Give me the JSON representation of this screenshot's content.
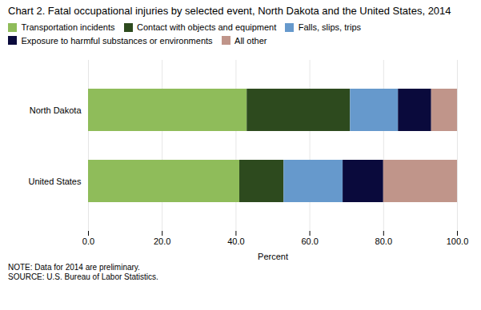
{
  "chart_data": {
    "type": "bar",
    "orientation": "horizontal",
    "stacked": true,
    "title": "Chart 2.  Fatal occupational injuries by selected event, North Dakota and the United States, 2014",
    "categories": [
      "North Dakota",
      "United States"
    ],
    "series": [
      {
        "name": "Transportation incidents",
        "color": "#8fbc5a",
        "values": [
          43.0,
          41.0
        ]
      },
      {
        "name": "Contact with objects and equipment",
        "color": "#2d4a1e",
        "values": [
          28.0,
          12.0
        ]
      },
      {
        "name": "Falls, slips, trips",
        "color": "#6699cc",
        "values": [
          13.0,
          16.0
        ]
      },
      {
        "name": "Exposure to harmful substances or environments",
        "color": "#0a0a3c",
        "values": [
          9.0,
          11.0
        ]
      },
      {
        "name": "All other",
        "color": "#c0958a",
        "values": [
          7.0,
          20.0
        ]
      }
    ],
    "xlabel": "Percent",
    "xlim": [
      0,
      100
    ],
    "xticks": [
      {
        "value": 0,
        "label": "0.0"
      },
      {
        "value": 20,
        "label": "20.0"
      },
      {
        "value": 40,
        "label": "40.0"
      },
      {
        "value": 60,
        "label": "60.0"
      },
      {
        "value": 80,
        "label": "80.0"
      },
      {
        "value": 100,
        "label": "100.0"
      }
    ],
    "grid": true,
    "legend": "top",
    "annotations": [
      "NOTE: Data for 2014 are preliminary.",
      "SOURCE: U.S. Bureau of Labor Statistics."
    ]
  }
}
